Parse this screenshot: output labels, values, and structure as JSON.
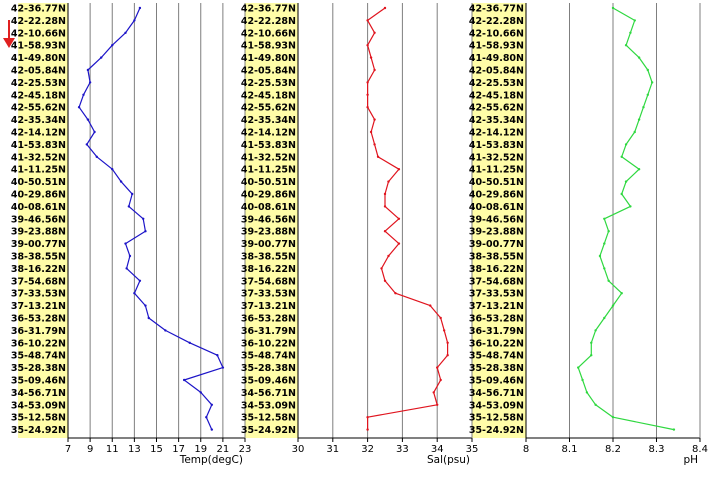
{
  "colors": {
    "background": "#ffffff",
    "label_band": "#fffda8",
    "grid": "#7f7f7f",
    "axis": "#000000",
    "arrow": "#e02020"
  },
  "indicator": {
    "icon": "down-arrow-icon"
  },
  "latitude_labels": [
    "42-36.77N",
    "42-22.28N",
    "42-10.66N",
    "41-58.93N",
    "41-49.80N",
    "42-05.84N",
    "42-25.53N",
    "42-45.18N",
    "42-55.62N",
    "42-35.34N",
    "42-14.12N",
    "41-53.83N",
    "41-32.52N",
    "41-11.25N",
    "40-50.51N",
    "40-29.86N",
    "40-08.61N",
    "39-46.56N",
    "39-23.88N",
    "39-00.77N",
    "38-38.55N",
    "38-16.22N",
    "37-54.68N",
    "37-33.53N",
    "37-13.21N",
    "36-53.28N",
    "36-31.79N",
    "36-10.22N",
    "35-48.74N",
    "35-28.38N",
    "35-09.46N",
    "34-56.71N",
    "34-53.09N",
    "35-12.58N",
    "35-24.92N"
  ],
  "chart_data": [
    {
      "type": "line",
      "xlabel": "Temp(degC)",
      "xlim": [
        7,
        23
      ],
      "xticks": [
        7,
        9,
        11,
        13,
        15,
        17,
        19,
        21,
        23
      ],
      "color": "#1c14c8",
      "values": [
        13.5,
        13.0,
        12.2,
        11.0,
        10.0,
        8.8,
        9.0,
        8.4,
        8.0,
        8.8,
        9.4,
        8.7,
        9.6,
        11.0,
        11.8,
        12.8,
        12.5,
        13.8,
        14.0,
        12.2,
        12.6,
        12.3,
        13.5,
        13.0,
        14.0,
        14.3,
        15.8,
        18.0,
        20.5,
        21.0,
        17.5,
        19.0,
        20.0,
        19.5,
        20.0
      ]
    },
    {
      "type": "line",
      "xlabel": "Sal(psu)",
      "xlim": [
        30,
        35
      ],
      "xticks": [
        30,
        31,
        32,
        33,
        34,
        35
      ],
      "color": "#e0141e",
      "values": [
        32.5,
        32.0,
        32.2,
        32.0,
        32.1,
        32.2,
        32.0,
        32.0,
        32.0,
        32.2,
        32.1,
        32.2,
        32.3,
        32.9,
        32.6,
        32.5,
        32.5,
        32.9,
        32.5,
        32.9,
        32.6,
        32.4,
        32.5,
        32.8,
        33.8,
        34.1,
        34.2,
        34.3,
        34.3,
        34.0,
        34.1,
        33.9,
        34.0,
        32.0,
        32.0
      ]
    },
    {
      "type": "line",
      "xlabel": "pH",
      "xlim": [
        8,
        8.4
      ],
      "xticks": [
        8,
        8.1,
        8.2,
        8.3,
        8.4
      ],
      "color": "#2fd840",
      "values": [
        8.2,
        8.25,
        8.24,
        8.23,
        8.26,
        8.28,
        8.29,
        8.28,
        8.27,
        8.26,
        8.25,
        8.23,
        8.22,
        8.26,
        8.23,
        8.22,
        8.24,
        8.18,
        8.19,
        8.18,
        8.17,
        8.18,
        8.19,
        8.22,
        8.2,
        8.18,
        8.16,
        8.15,
        8.15,
        8.12,
        8.13,
        8.14,
        8.16,
        8.2,
        8.34
      ]
    }
  ]
}
